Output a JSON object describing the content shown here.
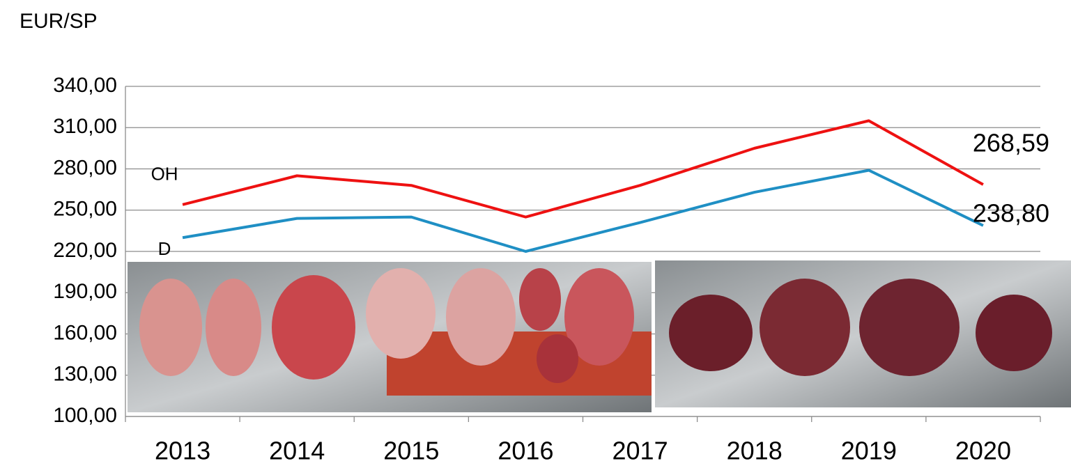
{
  "chart_data": {
    "type": "line",
    "y_unit_label": "EUR/SP",
    "categories": [
      "2013",
      "2014",
      "2015",
      "2016",
      "2017",
      "2018",
      "2019",
      "2020"
    ],
    "series": [
      {
        "name": "OH",
        "color": "#ee1111",
        "values": [
          254,
          275,
          268,
          245,
          268,
          295,
          315,
          268.59
        ],
        "value_labels": [
          null,
          null,
          null,
          null,
          null,
          null,
          null,
          "268,59"
        ]
      },
      {
        "name": "D",
        "color": "#1f8fc4",
        "values": [
          230,
          244,
          245,
          220,
          241,
          263,
          279,
          238.8
        ],
        "value_labels": [
          null,
          null,
          null,
          null,
          null,
          null,
          null,
          "238,80"
        ]
      }
    ],
    "ylim": [
      100,
      340
    ],
    "yticks": [
      {
        "value": 100,
        "label": "100,00"
      },
      {
        "value": 130,
        "label": "130,00"
      },
      {
        "value": 160,
        "label": "160,00"
      },
      {
        "value": 190,
        "label": "190,00"
      },
      {
        "value": 220,
        "label": "220,00"
      },
      {
        "value": 250,
        "label": "250,00"
      },
      {
        "value": 280,
        "label": "280,00"
      },
      {
        "value": 310,
        "label": "310,00"
      },
      {
        "value": 340,
        "label": "340,00"
      }
    ],
    "grid": true
  }
}
